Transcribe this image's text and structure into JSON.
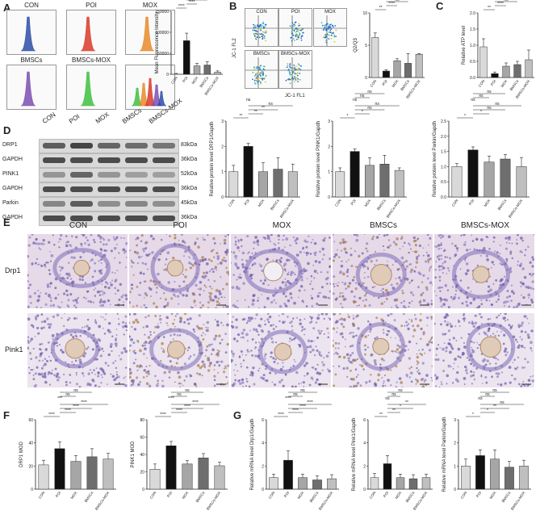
{
  "panels": {
    "a": "A",
    "b": "B",
    "c": "C",
    "d": "D",
    "e": "E",
    "f": "F",
    "g": "G"
  },
  "groups": [
    "CON",
    "POI",
    "MOX",
    "BMSCs",
    "BMSCs-MOX"
  ],
  "flow_a": {
    "labels": [
      "CON",
      "POI",
      "MOX",
      "BMSCs",
      "BMSCs-MOX"
    ],
    "hist_colors": [
      "#2c4da8",
      "#d83a2a",
      "#e8892a",
      "#7b4fb0",
      "#3fbf3f"
    ]
  },
  "flow_b": {
    "labels": [
      "CON",
      "POI",
      "MOX",
      "BMSCs",
      "BMSCs-MOX"
    ],
    "xaxis": "JC-1 FL1",
    "yaxis": "JC-1 FL2"
  },
  "wb": {
    "lane_labels": [
      "CON",
      "POI",
      "MOX",
      "BMSCs",
      "BMSCs-MOX"
    ],
    "rows": [
      {
        "name": "DRP1",
        "kda": "83kDa",
        "intensity": [
          0.75,
          0.9,
          0.7,
          0.65,
          0.6
        ]
      },
      {
        "name": "GAPDH",
        "kda": "36kDa",
        "intensity": [
          0.85,
          0.85,
          0.85,
          0.85,
          0.85
        ]
      },
      {
        "name": "PINK1",
        "kda": "52kDa",
        "intensity": [
          0.4,
          0.7,
          0.4,
          0.35,
          0.35
        ]
      },
      {
        "name": "GAPDH",
        "kda": "36kDa",
        "intensity": [
          0.85,
          0.85,
          0.85,
          0.85,
          0.85
        ]
      },
      {
        "name": "Parkin",
        "kda": "45kDa",
        "intensity": [
          0.5,
          0.75,
          0.45,
          0.5,
          0.45
        ]
      },
      {
        "name": "GAPDH",
        "kda": "36kDa",
        "intensity": [
          0.85,
          0.85,
          0.85,
          0.85,
          0.85
        ]
      }
    ]
  },
  "ihc": {
    "columns": [
      "CON",
      "POI",
      "MOX",
      "BMSCs",
      "BMSCs-MOX"
    ],
    "rows": [
      "Drp1",
      "Pink1"
    ]
  },
  "colors": {
    "bar_fills": [
      "#d9d9d9",
      "#111111",
      "#a6a6a6",
      "#6e6e6e",
      "#bfbfbf"
    ]
  },
  "chart_data": [
    {
      "id": "a-mfi",
      "type": "bar",
      "categories": [
        "CON",
        "POI",
        "MOX",
        "BMSCs",
        "BMSCs-MOX"
      ],
      "values": [
        0,
        80000,
        20000,
        22000,
        5000
      ],
      "errors": [
        2000,
        18000,
        6000,
        8000,
        3000
      ],
      "ylabel": "Mean Fluorescence Intensity",
      "ylim": [
        0,
        150000
      ],
      "yticks": [
        "0",
        "50000",
        "100000",
        "150000"
      ],
      "sig": [
        "****",
        "****",
        "****",
        "****",
        "ns"
      ]
    },
    {
      "id": "b-ratio",
      "type": "bar",
      "categories": [
        "CON",
        "POI",
        "MOX",
        "BMSCs",
        "BMSCs-MOX"
      ],
      "values": [
        6.2,
        1.0,
        2.6,
        2.2,
        3.6
      ],
      "errors": [
        0.7,
        0.2,
        0.3,
        1.5,
        0.1
      ],
      "ylabel": "Q2/Q3",
      "ylim": [
        0,
        10
      ],
      "yticks": [
        "0",
        "5",
        "10"
      ],
      "sig": [
        "**",
        "****",
        "ns",
        "ns",
        "ns",
        "ns"
      ]
    },
    {
      "id": "c-atp",
      "type": "bar",
      "categories": [
        "CON",
        "POI",
        "MOX",
        "BMSCs",
        "BMSCs-MOX"
      ],
      "values": [
        0.95,
        0.12,
        0.35,
        0.4,
        0.55
      ],
      "errors": [
        0.25,
        0.05,
        0.1,
        0.1,
        0.3
      ],
      "ylabel": "Relative ATP level",
      "ylim": [
        0,
        2
      ],
      "yticks": [
        "0.0",
        "0.5",
        "1.0",
        "1.5",
        "2.0"
      ],
      "sig": [
        "**",
        "****",
        "ns",
        "ns",
        "ns",
        "ns"
      ]
    },
    {
      "id": "d-drp1",
      "type": "bar",
      "categories": [
        "CON",
        "POI",
        "MOX",
        "BMSCs",
        "BMSCs-MOX"
      ],
      "values": [
        1.0,
        2.0,
        1.0,
        1.1,
        1.0
      ],
      "errors": [
        0.25,
        0.12,
        0.35,
        0.45,
        0.3
      ],
      "ylabel": "Relative protein level DRP1/Gapdh",
      "ylim": [
        0,
        3
      ],
      "yticks": [
        "0",
        "1",
        "2",
        "3"
      ],
      "sig": [
        "**",
        "**",
        "**",
        "ns",
        "ns"
      ]
    },
    {
      "id": "d-pink1",
      "type": "bar",
      "categories": [
        "CON",
        "POI",
        "MOX",
        "BMSCs",
        "BMSCs-MOX"
      ],
      "values": [
        1.0,
        1.8,
        1.25,
        1.3,
        1.05
      ],
      "errors": [
        0.15,
        0.1,
        0.3,
        0.35,
        0.1
      ],
      "ylabel": "Relative protein level PINK1/Gapdh",
      "ylim": [
        0,
        3
      ],
      "yticks": [
        "0",
        "1",
        "2",
        "3"
      ],
      "sig": [
        "*",
        "*",
        "ns",
        "ns",
        "ns",
        "ns",
        "ns"
      ]
    },
    {
      "id": "d-parkin",
      "type": "bar",
      "categories": [
        "CON",
        "POI",
        "MOX",
        "BMSCs",
        "BMSCs-MOX"
      ],
      "values": [
        1.0,
        1.55,
        1.15,
        1.25,
        1.0
      ],
      "errors": [
        0.1,
        0.1,
        0.2,
        0.15,
        0.3
      ],
      "ylabel": "Relative protein level Parkin/Gapdh",
      "ylim": [
        0,
        2.5
      ],
      "yticks": [
        "0.0",
        "0.5",
        "1.0",
        "1.5",
        "2.0",
        "2.5"
      ],
      "sig": [
        "*",
        "*",
        "ns",
        "ns",
        "ns",
        "ns",
        "ns"
      ]
    },
    {
      "id": "f-drp1",
      "type": "bar",
      "categories": [
        "CON",
        "POI",
        "MOX",
        "BMSCs",
        "BMSCs-MOX"
      ],
      "values": [
        21,
        35,
        24,
        28,
        26
      ],
      "errors": [
        4,
        6,
        5,
        7,
        5
      ],
      "ylabel": "DRP1 MOD",
      "ylim": [
        0,
        60
      ],
      "yticks": [
        "0",
        "20",
        "40",
        "60"
      ],
      "sig": [
        "****",
        "****",
        "****",
        "****",
        "***",
        "ns",
        "ns"
      ]
    },
    {
      "id": "f-pink1",
      "type": "bar",
      "categories": [
        "CON",
        "POI",
        "MOX",
        "BMSCs",
        "BMSCs-MOX"
      ],
      "values": [
        23,
        50,
        29,
        36,
        27
      ],
      "errors": [
        6,
        5,
        4,
        5,
        4
      ],
      "ylabel": "PINK1 MOD",
      "ylim": [
        0,
        80
      ],
      "yticks": [
        "0",
        "20",
        "40",
        "60",
        "80"
      ],
      "sig": [
        "****",
        "****",
        "****",
        "****",
        "****",
        "ns",
        "ns"
      ]
    },
    {
      "id": "g-drp1",
      "type": "bar",
      "categories": [
        "CON",
        "POI",
        "MOX",
        "BMSCs",
        "BMSCs-MOX"
      ],
      "values": [
        1.0,
        2.5,
        1.0,
        0.8,
        0.9
      ],
      "errors": [
        0.3,
        0.8,
        0.3,
        0.35,
        0.35
      ],
      "ylabel": "Relative mRNA level Drp1/Gapdh",
      "ylim": [
        0,
        6
      ],
      "yticks": [
        "0",
        "2",
        "4",
        "6"
      ],
      "sig": [
        "****",
        "****",
        "****",
        "****",
        "****",
        "ns",
        "ns"
      ]
    },
    {
      "id": "g-pink1",
      "type": "bar",
      "categories": [
        "CON",
        "POI",
        "MOX",
        "BMSCs",
        "BMSCs-MOX"
      ],
      "values": [
        1.0,
        2.2,
        1.0,
        0.9,
        1.0
      ],
      "errors": [
        0.35,
        0.7,
        0.3,
        0.35,
        0.3
      ],
      "ylabel": "Relative mRNA level Pink1/Gapdh",
      "ylim": [
        0,
        6
      ],
      "yticks": [
        "0",
        "2",
        "4",
        "6"
      ],
      "sig": [
        "**",
        "**",
        "*",
        "**",
        "ns",
        "ns",
        "ns"
      ]
    },
    {
      "id": "g-parkin",
      "type": "bar",
      "categories": [
        "CON",
        "POI",
        "MOX",
        "BMSCs",
        "BMSCs-MOX"
      ],
      "values": [
        1.0,
        1.45,
        1.3,
        0.95,
        1.0
      ],
      "errors": [
        0.3,
        0.25,
        0.4,
        0.25,
        0.25
      ],
      "ylabel": "Relative mRNA level Parkin/Gapdh",
      "ylim": [
        0,
        3
      ],
      "yticks": [
        "0",
        "1",
        "2",
        "3"
      ],
      "sig": [
        "*",
        "*",
        "**",
        "ns",
        "ns",
        "ns",
        "ns"
      ]
    }
  ]
}
